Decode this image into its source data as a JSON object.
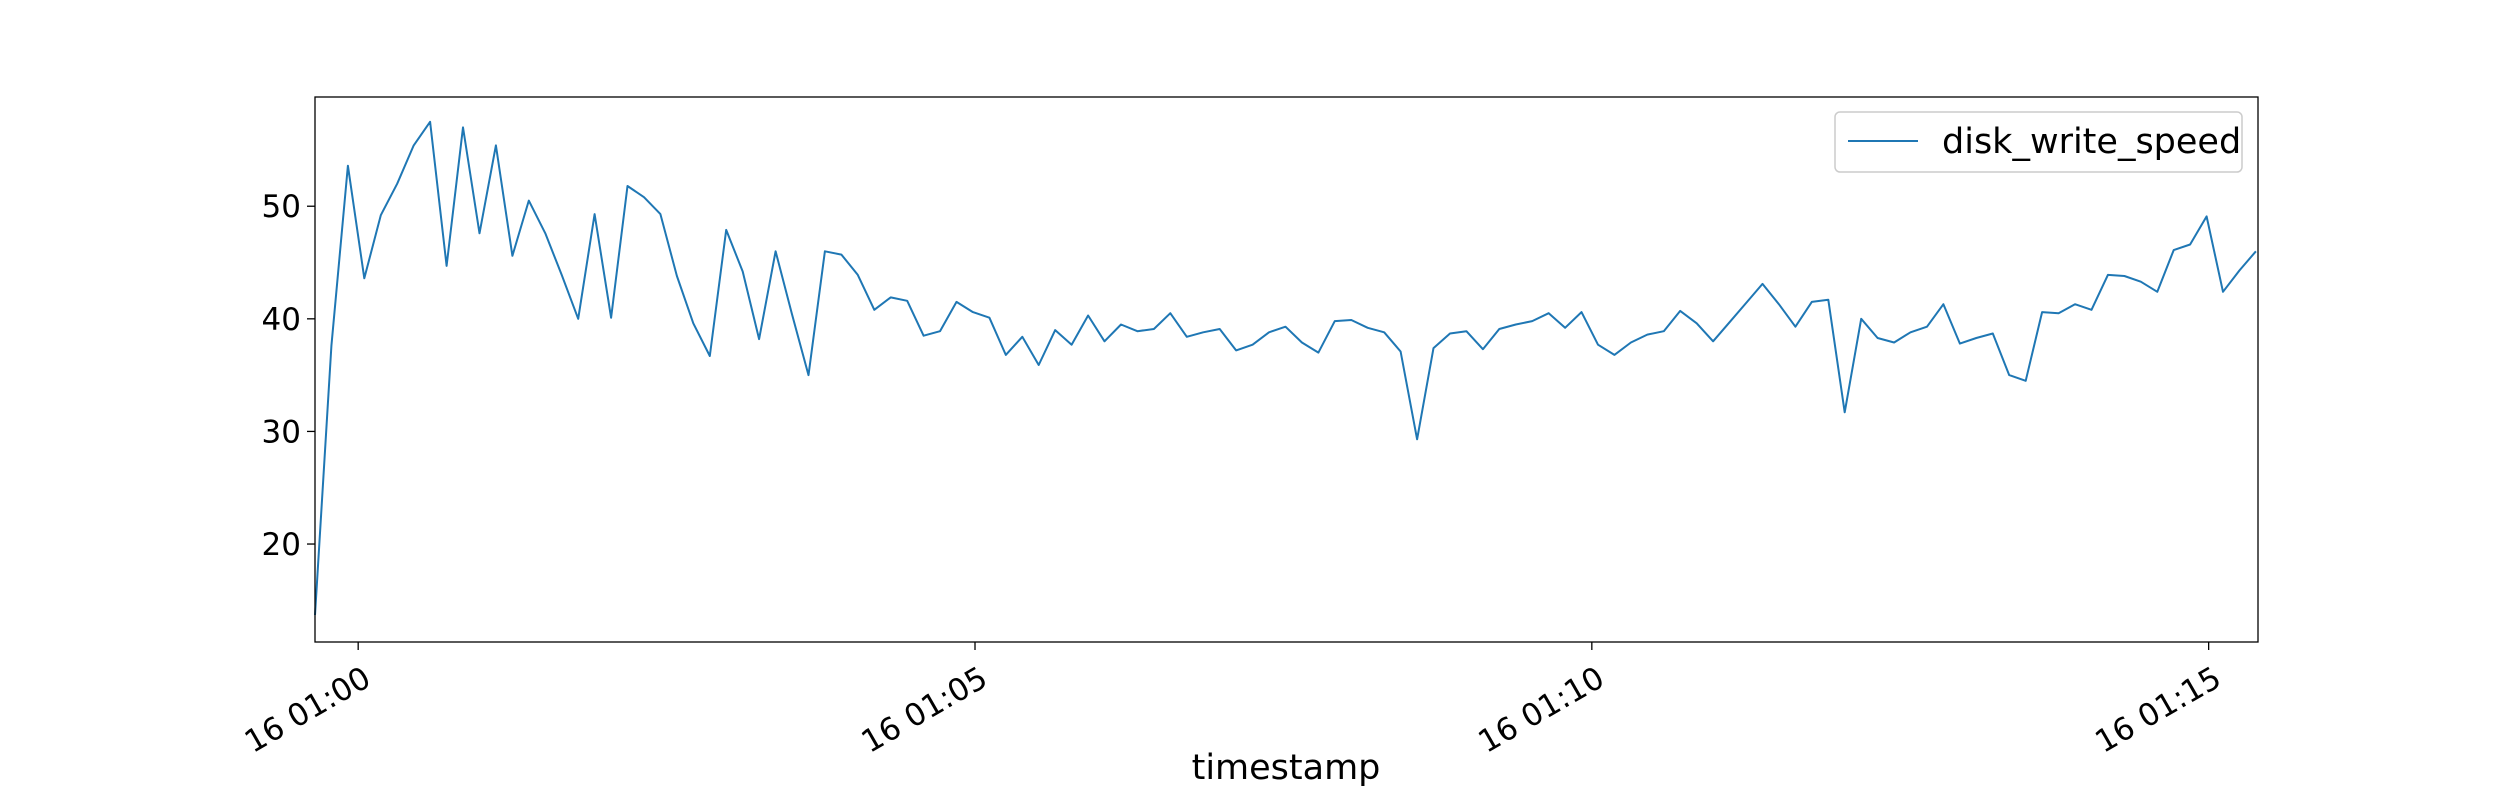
{
  "chart_data": {
    "type": "line",
    "title": "",
    "xlabel": "timestamp",
    "ylabel": "",
    "x_tick_labels": [
      "16 01:00",
      "16 01:05",
      "16 01:10",
      "16 01:15"
    ],
    "x_tick_minutes": [
      0,
      5,
      10,
      15
    ],
    "y_ticks": [
      20,
      30,
      40,
      50
    ],
    "xlim_minutes": [
      -0.35,
      15.4
    ],
    "ylim": [
      11.3,
      59.7
    ],
    "grid": false,
    "legend_position": "top-right",
    "series": [
      {
        "name": "disk_write_speed",
        "color": "#1f77b4",
        "values": [
          13.7,
          37.6,
          53.6,
          43.6,
          49.2,
          52.0,
          55.4,
          57.5,
          44.7,
          57.0,
          47.6,
          55.4,
          45.6,
          50.5,
          47.6,
          43.9,
          40.0,
          49.3,
          40.1,
          51.8,
          50.8,
          49.3,
          43.8,
          39.6,
          36.7,
          47.9,
          44.2,
          38.2,
          46.0,
          40.4,
          35.0,
          46.0,
          45.7,
          43.9,
          40.8,
          41.9,
          41.6,
          38.5,
          38.9,
          41.5,
          40.6,
          40.1,
          36.8,
          38.4,
          35.9,
          39.0,
          37.7,
          40.3,
          38.0,
          39.5,
          38.9,
          39.1,
          40.5,
          38.4,
          38.8,
          39.1,
          37.2,
          37.7,
          38.8,
          39.3,
          37.9,
          37.0,
          39.8,
          39.9,
          39.2,
          38.8,
          37.1,
          29.3,
          37.4,
          38.7,
          38.9,
          37.3,
          39.1,
          39.5,
          39.8,
          40.5,
          39.2,
          40.6,
          37.7,
          36.8,
          37.9,
          38.6,
          38.9,
          40.7,
          39.6,
          38.0,
          39.7,
          41.4,
          43.1,
          41.3,
          39.3,
          41.5,
          41.7,
          31.7,
          40.0,
          38.3,
          37.9,
          38.8,
          39.3,
          41.3,
          37.8,
          38.3,
          38.7,
          35.0,
          34.5,
          40.6,
          40.5,
          41.3,
          40.8,
          43.9,
          43.8,
          43.3,
          42.4,
          46.1,
          46.6,
          49.1,
          42.4,
          44.3,
          46.0
        ]
      }
    ]
  }
}
